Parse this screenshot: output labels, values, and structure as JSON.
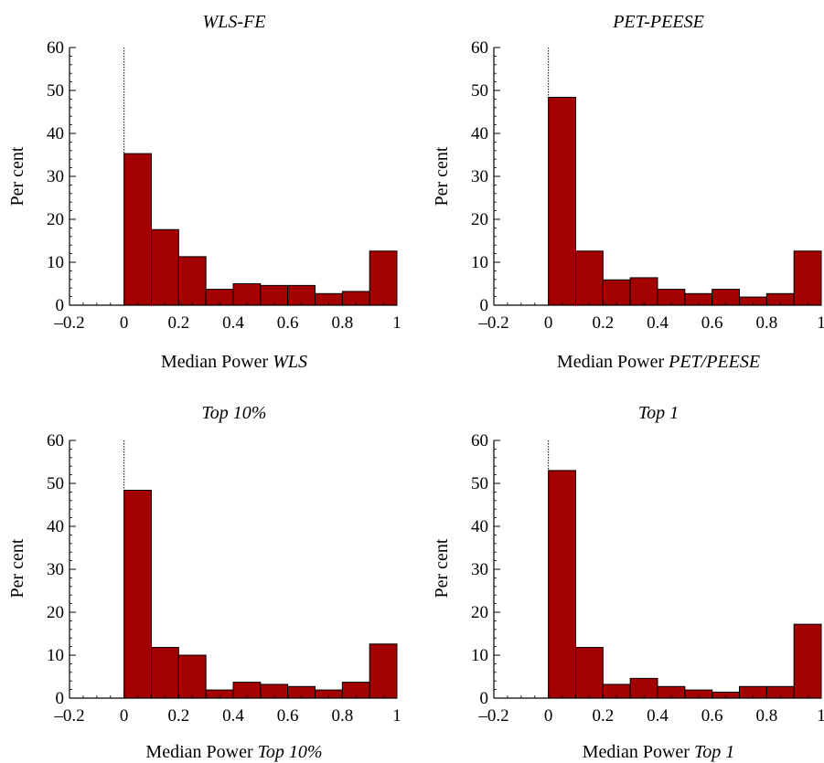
{
  "colors": {
    "bar_fill": "#A30000",
    "bar_stroke": "#000000",
    "axis": "#000000"
  },
  "chart_data": [
    {
      "type": "bar",
      "title": "WLS-FE",
      "xlabel_prefix": "Median Power ",
      "xlabel_italic": "WLS",
      "ylabel": "Per cent",
      "xlim": [
        -0.2,
        1
      ],
      "ylim": [
        0,
        60
      ],
      "xticks": [
        "–0.2",
        "0",
        "0.2",
        "0.4",
        "0.6",
        "0.8",
        "1"
      ],
      "yticks": [
        "0",
        "10",
        "20",
        "30",
        "40",
        "50",
        "60"
      ],
      "bin_width": 0.1,
      "bin_starts": [
        0,
        0.1,
        0.2,
        0.3,
        0.4,
        0.5,
        0.6,
        0.7,
        0.8,
        0.9
      ],
      "values": [
        35.3,
        17.6,
        11.3,
        3.7,
        5.0,
        4.6,
        4.6,
        2.7,
        3.2,
        12.6
      ],
      "reference_line_x": 0
    },
    {
      "type": "bar",
      "title": "PET-PEESE",
      "xlabel_prefix": "Median Power ",
      "xlabel_italic": "PET/PEESE",
      "ylabel": "Per cent",
      "xlim": [
        -0.2,
        1
      ],
      "ylim": [
        0,
        60
      ],
      "xticks": [
        "–0.2",
        "0",
        "0.2",
        "0.4",
        "0.6",
        "0.8",
        "1"
      ],
      "yticks": [
        "0",
        "10",
        "20",
        "30",
        "40",
        "50",
        "60"
      ],
      "bin_width": 0.1,
      "bin_starts": [
        0,
        0.1,
        0.2,
        0.3,
        0.4,
        0.5,
        0.6,
        0.7,
        0.8,
        0.9
      ],
      "values": [
        48.4,
        12.6,
        5.9,
        6.4,
        3.7,
        2.7,
        3.7,
        1.9,
        2.7,
        12.6
      ],
      "reference_line_x": 0
    },
    {
      "type": "bar",
      "title": "Top 10%",
      "xlabel_prefix": "Median Power ",
      "xlabel_italic": "Top 10%",
      "ylabel": "Per cent",
      "xlim": [
        -0.2,
        1
      ],
      "ylim": [
        0,
        60
      ],
      "xticks": [
        "–0.2",
        "0",
        "0.2",
        "0.4",
        "0.6",
        "0.8",
        "1"
      ],
      "yticks": [
        "0",
        "10",
        "20",
        "30",
        "40",
        "50",
        "60"
      ],
      "bin_width": 0.1,
      "bin_starts": [
        0,
        0.1,
        0.2,
        0.3,
        0.4,
        0.5,
        0.6,
        0.7,
        0.8,
        0.9
      ],
      "values": [
        48.4,
        11.8,
        10.0,
        1.9,
        3.7,
        3.2,
        2.7,
        1.9,
        3.7,
        12.6
      ],
      "reference_line_x": 0
    },
    {
      "type": "bar",
      "title": "Top 1",
      "xlabel_prefix": "Median Power ",
      "xlabel_italic": "Top 1",
      "ylabel": "Per cent",
      "xlim": [
        -0.2,
        1
      ],
      "ylim": [
        0,
        60
      ],
      "xticks": [
        "–0.2",
        "0",
        "0.2",
        "0.4",
        "0.6",
        "0.8",
        "1"
      ],
      "yticks": [
        "0",
        "10",
        "20",
        "30",
        "40",
        "50",
        "60"
      ],
      "bin_width": 0.1,
      "bin_starts": [
        0,
        0.1,
        0.2,
        0.3,
        0.4,
        0.5,
        0.6,
        0.7,
        0.8,
        0.9
      ],
      "values": [
        53.0,
        11.8,
        3.2,
        4.6,
        2.7,
        1.9,
        1.4,
        2.7,
        2.7,
        17.2
      ],
      "reference_line_x": 0
    }
  ]
}
